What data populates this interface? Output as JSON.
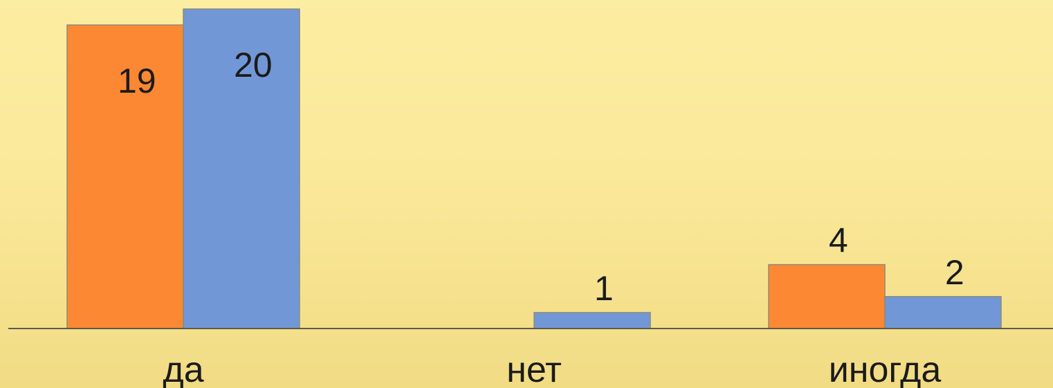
{
  "chart_data": {
    "type": "bar",
    "categories": [
      "да",
      "нет",
      "иногда"
    ],
    "series": [
      {
        "values": [
          19,
          0,
          4
        ],
        "color": "#fd8833"
      },
      {
        "values": [
          20,
          1,
          2
        ],
        "color": "#7297d6"
      }
    ],
    "data_labels": [
      [
        "19",
        "",
        "4"
      ],
      [
        "20",
        "1",
        "2"
      ]
    ],
    "ylim": [
      0,
      20
    ],
    "legend": "none",
    "grid": false
  }
}
